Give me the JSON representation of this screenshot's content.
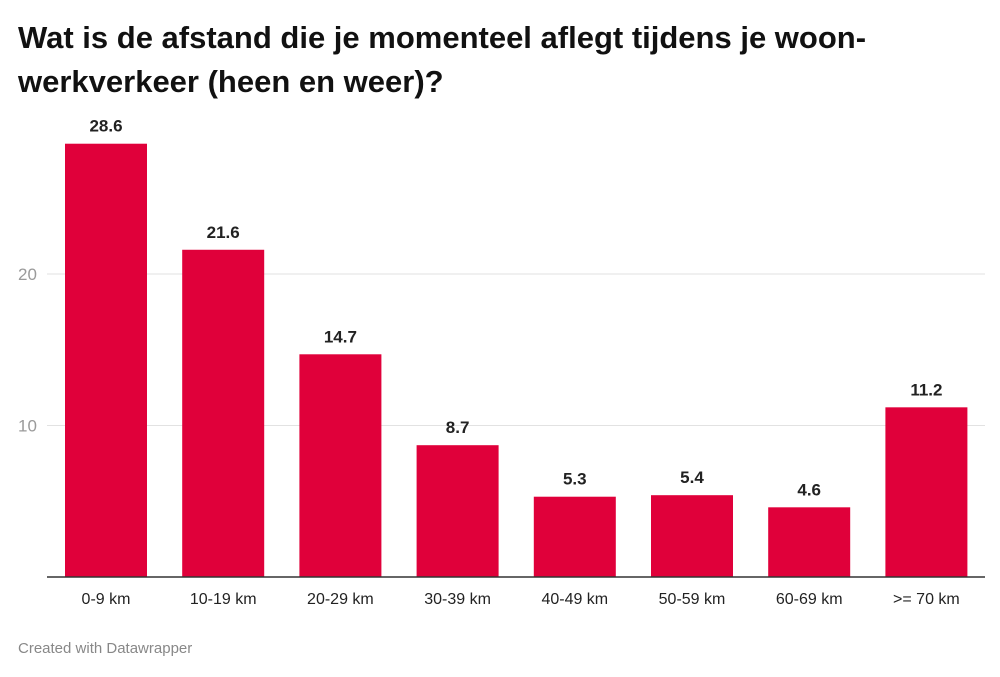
{
  "chart_data": {
    "type": "bar",
    "title": "Wat is de afstand die je momenteel aflegt tijdens je woon-werkverkeer (heen en weer)?",
    "xlabel": "",
    "ylabel": "",
    "categories": [
      "0-9 km",
      "10-19 km",
      "20-29 km",
      "30-39 km",
      "40-49 km",
      "50-59 km",
      "60-69 km",
      ">= 70 km"
    ],
    "values": [
      28.6,
      21.6,
      14.7,
      8.7,
      5.3,
      5.4,
      4.6,
      11.2
    ],
    "value_labels": [
      "28.6",
      "21.6",
      "14.7",
      "8.7",
      "5.3",
      "5.4",
      "4.6",
      "11.2"
    ],
    "ylim": [
      0,
      30
    ],
    "yticks": [
      10,
      20
    ],
    "ytick_labels": [
      "10",
      "20"
    ],
    "grid": true,
    "bar_color": "#e0003a"
  },
  "footer": "Created with Datawrapper"
}
